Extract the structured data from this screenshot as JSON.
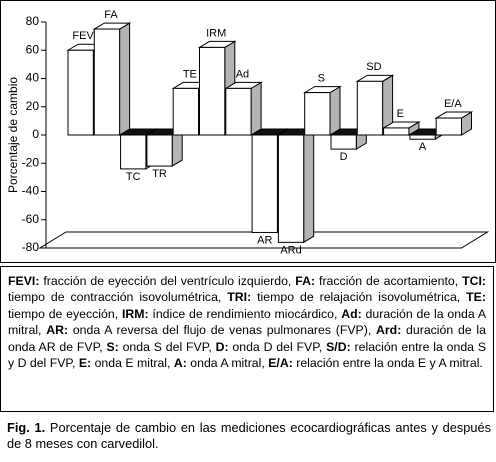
{
  "chart_data": {
    "type": "bar3d",
    "y_label": "Porcentaje de cambio",
    "categories": [
      "FEVI",
      "FA",
      "TC",
      "TR",
      "TE",
      "IRM",
      "Ad",
      "AR",
      "ARd",
      "S",
      "D",
      "SD",
      "E",
      "A",
      "E/A"
    ],
    "values": [
      60,
      75,
      -24,
      -22,
      33,
      62,
      33,
      -69,
      -76,
      30,
      -10,
      38,
      5,
      -3,
      12
    ],
    "color": "#ffffff",
    "side_color": "#b4b4b4",
    "zero_top_color": "#111111",
    "ylim": [
      -80,
      80
    ],
    "yticks": [
      80,
      60,
      40,
      20,
      0,
      -20,
      -40,
      -60,
      -80
    ]
  },
  "abbreviations": [
    {
      "term": "FEVI:",
      "text": "fracción de eyección del ventrículo izquierdo,"
    },
    {
      "term": "FA:",
      "text": "fracción de acortamiento,"
    },
    {
      "term": "TCI:",
      "text": "tiempo de contracción isovolumétrica,"
    },
    {
      "term": "TRI:",
      "text": "tiempo de relajación isovolumétrica,"
    },
    {
      "term": "TE:",
      "text": "tiempo de eyección,"
    },
    {
      "term": "IRM:",
      "text": "índice de rendimiento miocárdico,"
    },
    {
      "term": "Ad:",
      "text": "duración de la onda A mitral,"
    },
    {
      "term": "AR:",
      "text": "onda A reversa del flujo de venas pulmonares (FVP),"
    },
    {
      "term": "Ard:",
      "text": "duración de la onda AR de FVP,"
    },
    {
      "term": "S:",
      "text": "onda S del FVP,"
    },
    {
      "term": "D:",
      "text": "onda D del FVP,"
    },
    {
      "term": "S/D:",
      "text": "relación entre la onda S y D del FVP,"
    },
    {
      "term": "E:",
      "text": "onda E mitral,"
    },
    {
      "term": "A:",
      "text": "onda A mitral,"
    },
    {
      "term": "E/A:",
      "text": "relación entre la onda E y A mitral."
    }
  ],
  "caption": {
    "label": "Fig. 1.",
    "text": "Porcentaje de cambio en las mediciones ecocardiográficas antes y después de 8 meses con carvedilol."
  }
}
